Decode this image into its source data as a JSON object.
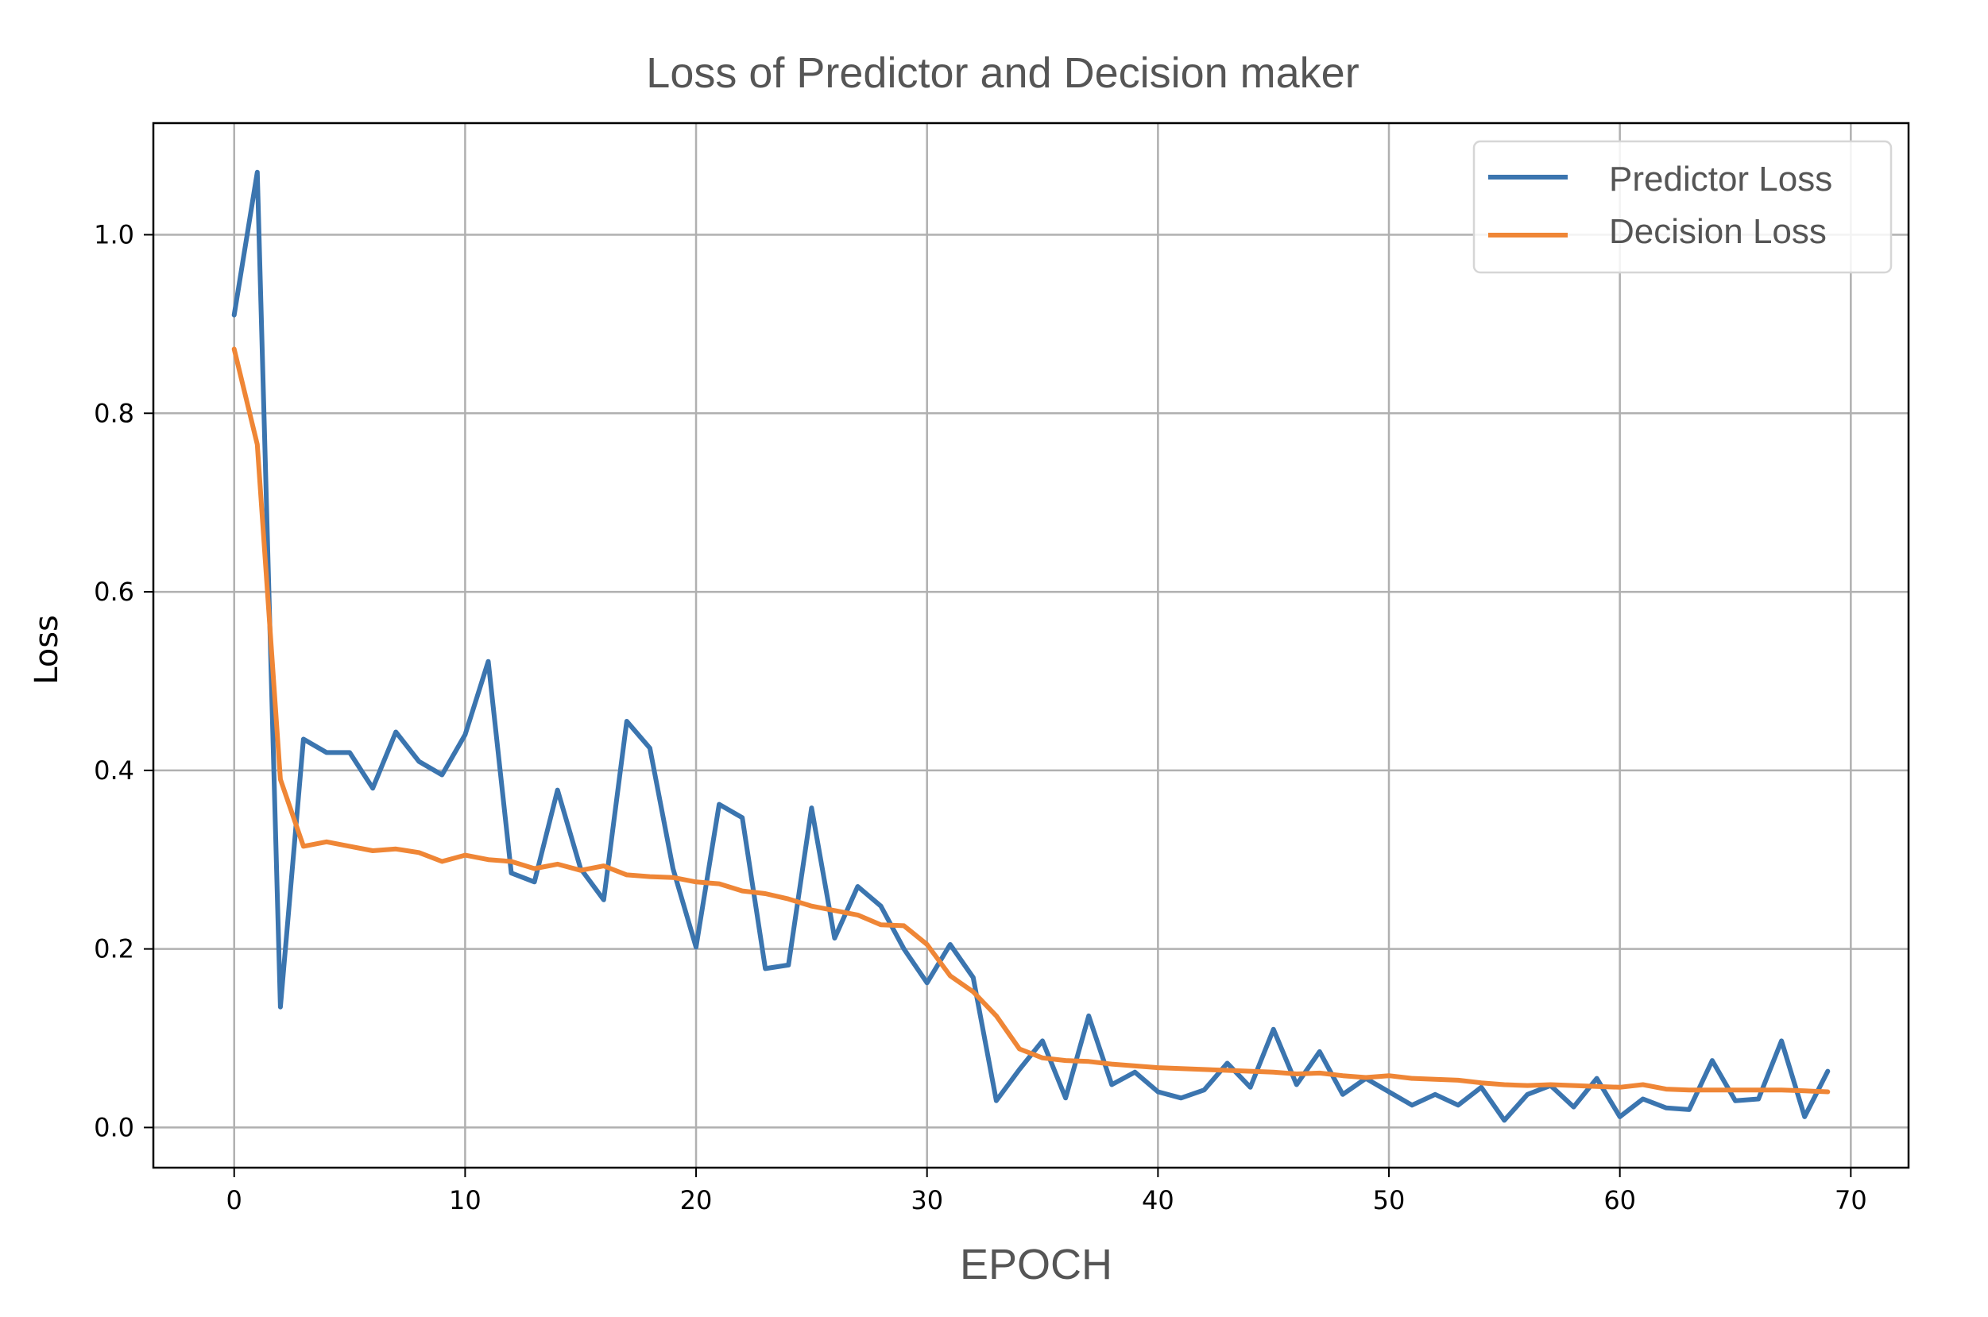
{
  "chart_data": {
    "type": "line",
    "title": "Loss of Predictor and Decision maker",
    "xlabel": "EPOCH",
    "ylabel": "Loss",
    "xlim": [
      -3.5,
      72.5
    ],
    "ylim": [
      -0.045,
      1.125
    ],
    "xticks": [
      0,
      10,
      20,
      30,
      40,
      50,
      60,
      70
    ],
    "yticks": [
      0.0,
      0.2,
      0.4,
      0.6,
      0.8,
      1.0
    ],
    "xtick_labels": [
      "0",
      "10",
      "20",
      "30",
      "40",
      "50",
      "60",
      "70"
    ],
    "ytick_labels": [
      "0.0",
      "0.2",
      "0.4",
      "0.6",
      "0.8",
      "1.0"
    ],
    "grid": true,
    "legend_position": "top-right",
    "x": [
      0,
      1,
      2,
      3,
      4,
      5,
      6,
      7,
      8,
      9,
      10,
      11,
      12,
      13,
      14,
      15,
      16,
      17,
      18,
      19,
      20,
      21,
      22,
      23,
      24,
      25,
      26,
      27,
      28,
      29,
      30,
      31,
      32,
      33,
      34,
      35,
      36,
      37,
      38,
      39,
      40,
      41,
      42,
      43,
      44,
      45,
      46,
      47,
      48,
      49,
      50,
      51,
      52,
      53,
      54,
      55,
      56,
      57,
      58,
      59,
      60,
      61,
      62,
      63,
      64,
      65,
      66,
      67,
      68,
      69
    ],
    "series": [
      {
        "name": "Predictor Loss",
        "color": "#3b75af",
        "values": [
          0.91,
          1.07,
          0.135,
          0.435,
          0.42,
          0.42,
          0.38,
          0.443,
          0.41,
          0.395,
          0.44,
          0.522,
          0.285,
          0.275,
          0.378,
          0.29,
          0.255,
          0.455,
          0.425,
          0.29,
          0.202,
          0.362,
          0.347,
          0.178,
          0.182,
          0.358,
          0.212,
          0.27,
          0.248,
          0.2,
          0.162,
          0.205,
          0.168,
          0.03,
          0.065,
          0.097,
          0.033,
          0.125,
          0.048,
          0.062,
          0.04,
          0.033,
          0.042,
          0.072,
          0.045,
          0.11,
          0.048,
          0.085,
          0.037,
          0.055,
          0.04,
          0.025,
          0.037,
          0.025,
          0.045,
          0.008,
          0.037,
          0.047,
          0.023,
          0.055,
          0.012,
          0.032,
          0.022,
          0.02,
          0.075,
          0.03,
          0.032,
          0.097,
          0.012,
          0.063
        ]
      },
      {
        "name": "Decision Loss",
        "color": "#ef8636",
        "values": [
          0.872,
          0.765,
          0.39,
          0.315,
          0.32,
          0.315,
          0.31,
          0.312,
          0.308,
          0.298,
          0.305,
          0.3,
          0.298,
          0.29,
          0.295,
          0.288,
          0.293,
          0.283,
          0.281,
          0.28,
          0.275,
          0.273,
          0.265,
          0.262,
          0.256,
          0.248,
          0.243,
          0.238,
          0.227,
          0.226,
          0.205,
          0.17,
          0.152,
          0.125,
          0.088,
          0.078,
          0.075,
          0.074,
          0.071,
          0.069,
          0.067,
          0.066,
          0.065,
          0.064,
          0.063,
          0.062,
          0.06,
          0.061,
          0.058,
          0.056,
          0.058,
          0.055,
          0.054,
          0.053,
          0.05,
          0.048,
          0.047,
          0.048,
          0.047,
          0.046,
          0.045,
          0.048,
          0.043,
          0.042,
          0.042,
          0.042,
          0.042,
          0.042,
          0.041,
          0.04
        ]
      }
    ]
  }
}
